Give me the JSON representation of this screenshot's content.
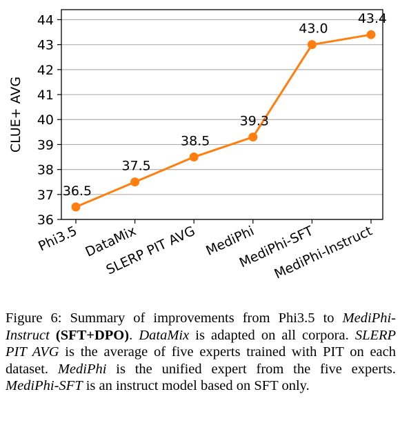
{
  "chart_data": {
    "type": "line",
    "categories": [
      "Phi3.5",
      "DataMix",
      "SLERP PIT AVG",
      "MediPhi",
      "MediPhi-SFT",
      "MediPhi-Instruct"
    ],
    "values": [
      36.5,
      37.5,
      38.5,
      39.3,
      43.0,
      43.4
    ],
    "value_labels": [
      "36.5",
      "37.5",
      "38.5",
      "39.3",
      "43.0",
      "43.4"
    ],
    "title": "",
    "xlabel": "",
    "ylabel": "CLUE+ AVG",
    "ylim": [
      36,
      44.4
    ],
    "yticks": [
      36,
      37,
      38,
      39,
      40,
      41,
      42,
      43,
      44
    ],
    "grid": "horizontal",
    "color": "#ff7f0e"
  },
  "caption": {
    "label": "Figure 6:",
    "t1": " Summary of improvements from Phi3.5 to ",
    "i1": "MediPhi-Instruct",
    "t2": " ",
    "b1": "(SFT+DPO)",
    "t3": ". ",
    "i2": "DataMix",
    "t4": " is adapted on all corpora. ",
    "i3": "SLERP PIT AVG",
    "t5": " is the average of five experts trained with PIT on each dataset. ",
    "i4": "MediPhi",
    "t6": " is the unified expert from the five experts. ",
    "i5": "MediPhi-SFT",
    "t7": " is an instruct model based on SFT only."
  }
}
